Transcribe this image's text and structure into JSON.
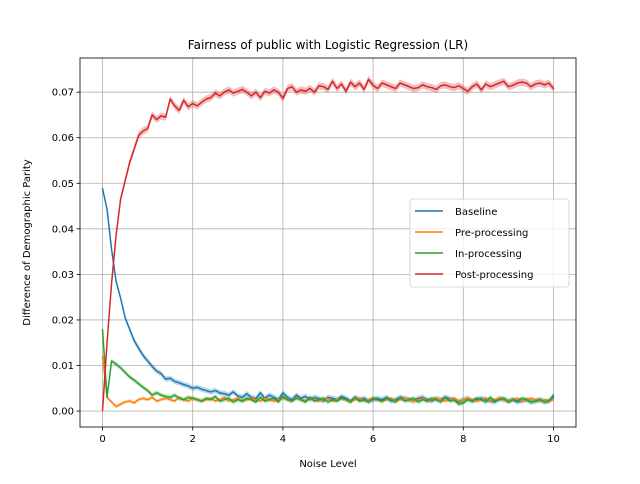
{
  "chart_data": {
    "type": "line",
    "title": "Fairness of public with Logistic Regression (LR)",
    "xlabel": "Noise Level",
    "ylabel": "Difference of Demographic Parity",
    "xlim": [
      -0.5,
      10.5
    ],
    "ylim": [
      -0.0035,
      0.0775
    ],
    "xticks": [
      0,
      2,
      4,
      6,
      8,
      10
    ],
    "xtick_labels": [
      "0",
      "2",
      "4",
      "6",
      "8",
      "10"
    ],
    "yticks": [
      0.0,
      0.01,
      0.02,
      0.03,
      0.04,
      0.05,
      0.06,
      0.07
    ],
    "ytick_labels": [
      "0.00",
      "0.01",
      "0.02",
      "0.03",
      "0.04",
      "0.05",
      "0.06",
      "0.07"
    ],
    "grid": true,
    "legend_position": "center-right",
    "x": [
      0.0,
      0.1,
      0.2,
      0.3,
      0.4,
      0.5,
      0.6,
      0.7,
      0.8,
      0.9,
      1.0,
      1.1,
      1.2,
      1.3,
      1.4,
      1.5,
      1.6,
      1.7,
      1.8,
      1.9,
      2.0,
      2.1,
      2.2,
      2.3,
      2.4,
      2.5,
      2.6,
      2.7,
      2.8,
      2.9,
      3.0,
      3.1,
      3.2,
      3.3,
      3.4,
      3.5,
      3.6,
      3.7,
      3.8,
      3.9,
      4.0,
      4.1,
      4.2,
      4.3,
      4.4,
      4.5,
      4.6,
      4.7,
      4.8,
      4.9,
      5.0,
      5.1,
      5.2,
      5.3,
      5.4,
      5.5,
      5.6,
      5.7,
      5.8,
      5.9,
      6.0,
      6.1,
      6.2,
      6.3,
      6.4,
      6.5,
      6.6,
      6.7,
      6.8,
      6.9,
      7.0,
      7.1,
      7.2,
      7.3,
      7.4,
      7.5,
      7.6,
      7.7,
      7.8,
      7.9,
      8.0,
      8.1,
      8.2,
      8.3,
      8.4,
      8.5,
      8.6,
      8.7,
      8.8,
      8.9,
      9.0,
      9.1,
      9.2,
      9.3,
      9.4,
      9.5,
      9.6,
      9.7,
      9.8,
      9.9,
      10.0
    ],
    "series": [
      {
        "name": "Baseline",
        "color": "#1f77b4",
        "band": 0.0006,
        "values": [
          0.0488,
          0.0443,
          0.0355,
          0.0285,
          0.0248,
          0.0205,
          0.018,
          0.0155,
          0.0138,
          0.0122,
          0.011,
          0.0098,
          0.0088,
          0.0082,
          0.007,
          0.0072,
          0.0065,
          0.0062,
          0.0058,
          0.0055,
          0.005,
          0.0052,
          0.0048,
          0.0045,
          0.0042,
          0.0045,
          0.004,
          0.0038,
          0.0035,
          0.0042,
          0.0033,
          0.003,
          0.0038,
          0.003,
          0.0027,
          0.004,
          0.0028,
          0.0035,
          0.003,
          0.0025,
          0.004,
          0.003,
          0.0025,
          0.0035,
          0.0028,
          0.0032,
          0.0025,
          0.003,
          0.0027,
          0.0022,
          0.003,
          0.0028,
          0.0025,
          0.0032,
          0.0028,
          0.0022,
          0.003,
          0.0025,
          0.0028,
          0.0022,
          0.0025,
          0.0028,
          0.0025,
          0.003,
          0.0022,
          0.0025,
          0.003,
          0.0028,
          0.0025,
          0.0022,
          0.0028,
          0.003,
          0.0025,
          0.0022,
          0.0028,
          0.0025,
          0.003,
          0.0027,
          0.0025,
          0.002,
          0.0025,
          0.0028,
          0.0022,
          0.0025,
          0.0028,
          0.0025,
          0.0022,
          0.002,
          0.0028,
          0.0025,
          0.0022,
          0.0025,
          0.002,
          0.0022,
          0.0025,
          0.002,
          0.0022,
          0.0025,
          0.002,
          0.0022,
          0.003
        ]
      },
      {
        "name": "Pre-processing",
        "color": "#ff7f0e",
        "band": 0.0004,
        "values": [
          0.012,
          0.003,
          0.002,
          0.001,
          0.0015,
          0.002,
          0.0022,
          0.0018,
          0.0025,
          0.0028,
          0.0025,
          0.003,
          0.0022,
          0.0025,
          0.0028,
          0.0025,
          0.0022,
          0.003,
          0.0025,
          0.0022,
          0.0028,
          0.0025,
          0.0022,
          0.0025,
          0.0028,
          0.0022,
          0.0025,
          0.003,
          0.0022,
          0.0025,
          0.0028,
          0.0022,
          0.0025,
          0.0028,
          0.0025,
          0.0022,
          0.0028,
          0.0025,
          0.0022,
          0.0025,
          0.0028,
          0.0025,
          0.0022,
          0.003,
          0.0025,
          0.0022,
          0.0028,
          0.0025,
          0.0022,
          0.0025,
          0.0028,
          0.0022,
          0.0025,
          0.0028,
          0.0025,
          0.0022,
          0.0025,
          0.0028,
          0.0022,
          0.0025,
          0.0028,
          0.0025,
          0.0022,
          0.0025,
          0.0028,
          0.0022,
          0.0025,
          0.0028,
          0.0025,
          0.0022,
          0.0025,
          0.0028,
          0.0022,
          0.0025,
          0.0028,
          0.0025,
          0.0022,
          0.0025,
          0.0028,
          0.0022,
          0.0025,
          0.0028,
          0.0025,
          0.0022,
          0.0025,
          0.0028,
          0.0022,
          0.0025,
          0.0028,
          0.0025,
          0.0022,
          0.0025,
          0.0028,
          0.0022,
          0.0025,
          0.0028,
          0.0025,
          0.0022,
          0.0025,
          0.0022,
          0.0025
        ]
      },
      {
        "name": "In-processing",
        "color": "#2ca02c",
        "band": 0.0005,
        "values": [
          0.0178,
          0.003,
          0.011,
          0.0103,
          0.0095,
          0.0085,
          0.0075,
          0.0068,
          0.006,
          0.0052,
          0.0045,
          0.0035,
          0.004,
          0.0035,
          0.0032,
          0.003,
          0.0035,
          0.0028,
          0.0025,
          0.003,
          0.0028,
          0.0025,
          0.0022,
          0.0028,
          0.0025,
          0.0032,
          0.0022,
          0.0025,
          0.0028,
          0.002,
          0.0025,
          0.0022,
          0.0028,
          0.0025,
          0.002,
          0.003,
          0.0022,
          0.0025,
          0.0028,
          0.002,
          0.0032,
          0.0025,
          0.0022,
          0.0028,
          0.0025,
          0.002,
          0.003,
          0.0022,
          0.0025,
          0.0028,
          0.002,
          0.0025,
          0.0022,
          0.0028,
          0.0025,
          0.002,
          0.003,
          0.0022,
          0.0025,
          0.002,
          0.0028,
          0.0025,
          0.0022,
          0.0028,
          0.0025,
          0.002,
          0.003,
          0.0022,
          0.0025,
          0.0028,
          0.002,
          0.0025,
          0.0022,
          0.0028,
          0.0025,
          0.002,
          0.003,
          0.0022,
          0.0025,
          0.0015,
          0.0018,
          0.0025,
          0.0022,
          0.0028,
          0.0025,
          0.002,
          0.003,
          0.0022,
          0.0025,
          0.0028,
          0.002,
          0.0025,
          0.0022,
          0.0028,
          0.0025,
          0.002,
          0.0022,
          0.0025,
          0.002,
          0.0022,
          0.0035
        ]
      },
      {
        "name": "Post-processing",
        "color": "#d62728",
        "band": 0.0008,
        "values": [
          0.0002,
          0.015,
          0.028,
          0.0385,
          0.0465,
          0.0505,
          0.0545,
          0.0575,
          0.0605,
          0.0615,
          0.062,
          0.065,
          0.064,
          0.0648,
          0.0645,
          0.0685,
          0.067,
          0.066,
          0.0682,
          0.0668,
          0.0675,
          0.067,
          0.0678,
          0.0685,
          0.0688,
          0.0698,
          0.0692,
          0.07,
          0.0705,
          0.0698,
          0.0702,
          0.0706,
          0.07,
          0.0692,
          0.07,
          0.0688,
          0.0702,
          0.0698,
          0.0705,
          0.07,
          0.0686,
          0.0708,
          0.0712,
          0.07,
          0.0705,
          0.0702,
          0.0708,
          0.07,
          0.0714,
          0.0712,
          0.0706,
          0.0724,
          0.0708,
          0.0718,
          0.0702,
          0.0722,
          0.0712,
          0.072,
          0.0706,
          0.0728,
          0.0715,
          0.0708,
          0.072,
          0.0716,
          0.0712,
          0.0708,
          0.072,
          0.0716,
          0.0712,
          0.0708,
          0.071,
          0.0716,
          0.0712,
          0.071,
          0.0706,
          0.0714,
          0.0716,
          0.0712,
          0.071,
          0.0714,
          0.0708,
          0.0702,
          0.0712,
          0.0718,
          0.0705,
          0.0718,
          0.0712,
          0.0716,
          0.072,
          0.0724,
          0.0712,
          0.0715,
          0.072,
          0.0722,
          0.072,
          0.0712,
          0.0718,
          0.072,
          0.0716,
          0.072,
          0.0708
        ]
      }
    ]
  }
}
